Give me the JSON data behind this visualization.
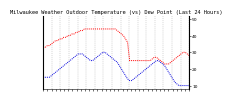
{
  "title": "Milwaukee Weather Outdoor Temperature (vs) Dew Point (Last 24 Hours)",
  "temp_color": "#ff0000",
  "dew_color": "#0000dd",
  "bg_color": "#ffffff",
  "grid_color": "#999999",
  "ylim": [
    8,
    52
  ],
  "yticks": [
    10,
    20,
    30,
    40,
    50
  ],
  "ytick_labels": [
    "10",
    "20",
    "30",
    "40",
    "50"
  ],
  "n_points": 72,
  "title_fontsize": 3.8,
  "tick_fontsize": 3.2,
  "temp": [
    33,
    33,
    34,
    34,
    35,
    36,
    37,
    37,
    38,
    38,
    39,
    39,
    40,
    40,
    41,
    41,
    42,
    42,
    43,
    43,
    44,
    44,
    44,
    44,
    44,
    44,
    44,
    44,
    44,
    44,
    44,
    44,
    44,
    44,
    44,
    44,
    43,
    42,
    41,
    40,
    38,
    36,
    25,
    25,
    25,
    25,
    25,
    25,
    25,
    25,
    25,
    25,
    25,
    26,
    27,
    27,
    26,
    25,
    24,
    23,
    23,
    23,
    24,
    25,
    26,
    27,
    28,
    29,
    30,
    30,
    29,
    28
  ],
  "dew": [
    15,
    15,
    15,
    15,
    16,
    17,
    18,
    19,
    20,
    21,
    22,
    23,
    24,
    25,
    26,
    27,
    28,
    29,
    29,
    29,
    28,
    27,
    26,
    25,
    25,
    26,
    27,
    28,
    29,
    30,
    30,
    29,
    28,
    27,
    26,
    25,
    24,
    22,
    20,
    18,
    16,
    14,
    13,
    13,
    14,
    15,
    16,
    17,
    18,
    19,
    20,
    21,
    22,
    23,
    24,
    25,
    25,
    24,
    23,
    22,
    20,
    18,
    16,
    14,
    12,
    11,
    10,
    10,
    10,
    10,
    10,
    10
  ],
  "n_vgrid": 18,
  "n_xticks": 36
}
